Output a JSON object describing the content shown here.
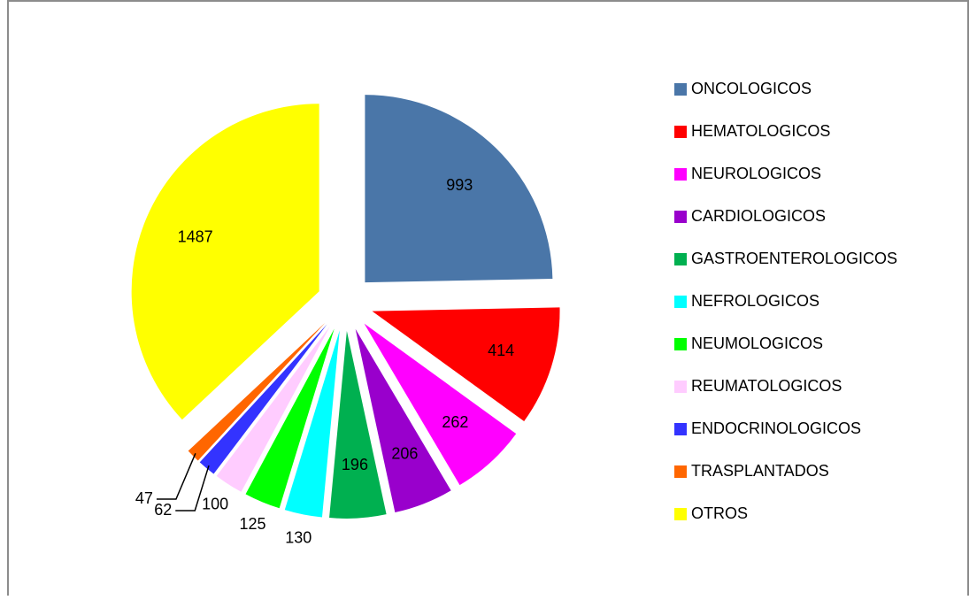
{
  "chart_data": {
    "type": "pie",
    "categories": [
      "ONCOLOGICOS",
      "HEMATOLOGICOS",
      "NEUROLOGICOS",
      "CARDIOLOGICOS",
      "GASTROENTEROLOGICOS",
      "NEFROLOGICOS",
      "NEUMOLOGICOS",
      "REUMATOLOGICOS",
      "ENDOCRINOLOGICOS",
      "TRASPLANTADOS",
      "OTROS"
    ],
    "values": [
      993,
      414,
      262,
      206,
      196,
      130,
      125,
      100,
      62,
      47,
      1487
    ],
    "colors": [
      "#4a76a8",
      "#ff0000",
      "#ff00ff",
      "#9900cc",
      "#00b050",
      "#00ffff",
      "#00ff00",
      "#ffccff",
      "#3333ff",
      "#ff6600",
      "#ffff00"
    ],
    "legend": "right"
  }
}
